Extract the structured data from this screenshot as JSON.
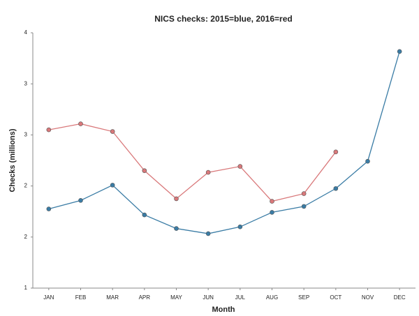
{
  "chart_data": {
    "type": "line",
    "title": "NICS checks: 2015=blue, 2016=red",
    "xlabel": "Month",
    "ylabel": "Checks (millions)",
    "categories": [
      "JAN",
      "FEB",
      "MAR",
      "APR",
      "MAY",
      "JUN",
      "JUL",
      "AUG",
      "SEP",
      "OCT",
      "NOV",
      "DEC"
    ],
    "series": [
      {
        "name": "2015",
        "color": "#3a7ca5",
        "values": [
          1.93,
          2.03,
          2.21,
          1.86,
          1.7,
          1.64,
          1.72,
          1.89,
          1.96,
          2.17,
          2.49,
          3.78
        ]
      },
      {
        "name": "2016",
        "color": "#d9787a",
        "values": [
          2.86,
          2.93,
          2.84,
          2.38,
          2.05,
          2.36,
          2.43,
          2.02,
          2.11,
          2.6,
          null,
          null
        ]
      }
    ],
    "ylim": [
      1,
      4
    ],
    "yticks": [
      1,
      {
        "value": 1.6,
        "label": "2"
      },
      {
        "value": 2.2,
        "label": "2"
      },
      {
        "value": 2.8,
        "label": "3"
      },
      {
        "value": 3.4,
        "label": "3"
      },
      4
    ]
  }
}
